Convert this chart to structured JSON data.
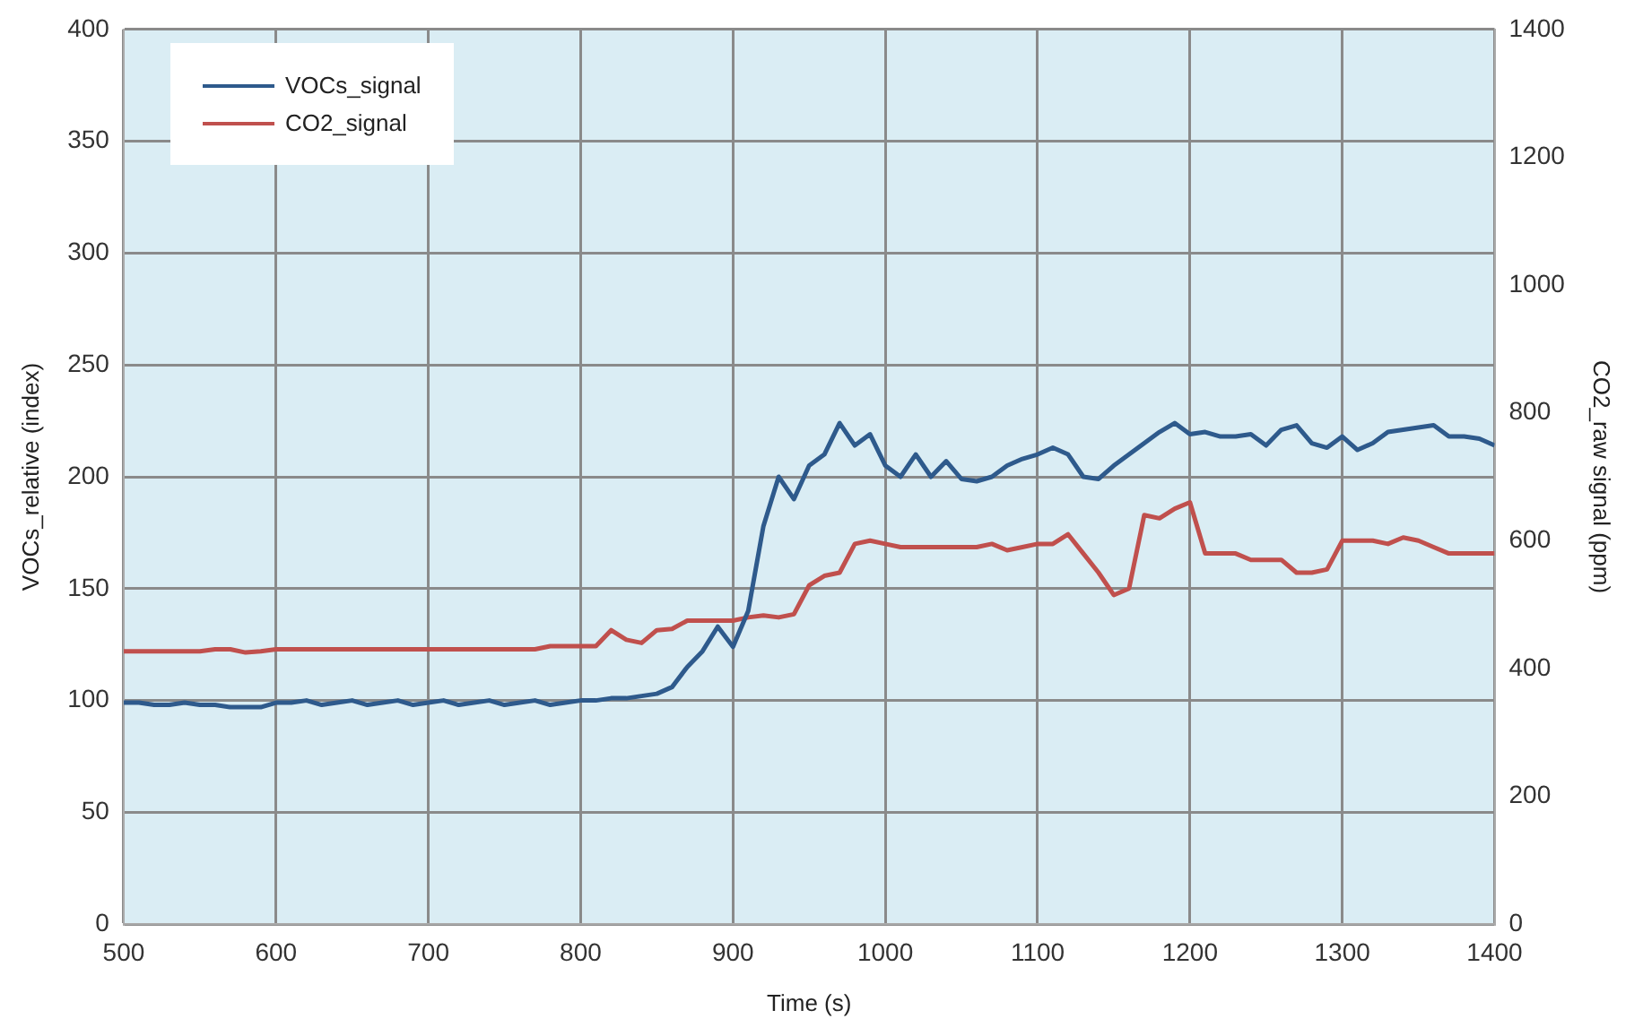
{
  "chart_data": {
    "type": "line",
    "xlabel": "Time (s)",
    "ylabel": "VOCs_relative (index)",
    "y2label": "CO2_raw signal (ppm)",
    "x": [
      500,
      510,
      520,
      530,
      540,
      550,
      560,
      570,
      580,
      590,
      600,
      610,
      620,
      630,
      640,
      650,
      660,
      670,
      680,
      690,
      700,
      710,
      720,
      730,
      740,
      750,
      760,
      770,
      780,
      790,
      800,
      810,
      820,
      830,
      840,
      850,
      860,
      870,
      880,
      890,
      900,
      910,
      920,
      930,
      940,
      950,
      960,
      970,
      980,
      990,
      1000,
      1010,
      1020,
      1030,
      1040,
      1050,
      1060,
      1070,
      1080,
      1090,
      1100,
      1110,
      1120,
      1130,
      1140,
      1150,
      1160,
      1170,
      1180,
      1190,
      1200,
      1210,
      1220,
      1230,
      1240,
      1250,
      1260,
      1270,
      1280,
      1290,
      1300,
      1310,
      1320,
      1330,
      1340,
      1350,
      1360,
      1370,
      1380,
      1390,
      1400
    ],
    "series": [
      {
        "name": "VOCs_signal",
        "color": "#2e5a8c",
        "values": [
          99,
          99,
          98,
          98,
          99,
          98,
          98,
          97,
          97,
          97,
          99,
          99,
          100,
          98,
          99,
          100,
          98,
          99,
          100,
          98,
          99,
          100,
          98,
          99,
          100,
          98,
          99,
          100,
          98,
          99,
          100,
          100,
          101,
          101,
          102,
          103,
          106,
          115,
          122,
          133,
          124,
          140,
          178,
          200,
          190,
          205,
          210,
          224,
          214,
          219,
          205,
          200,
          210,
          200,
          207,
          199,
          198,
          200,
          205,
          208,
          210,
          213,
          210,
          200,
          199,
          205,
          210,
          215,
          220,
          224,
          219,
          220,
          218,
          218,
          219,
          214,
          221,
          223,
          215,
          213,
          218,
          212,
          215,
          220,
          221,
          222,
          223,
          218,
          218,
          217,
          214
        ]
      },
      {
        "name": "CO2_signal",
        "color": "#c0504d",
        "axis": "y2",
        "values": [
          427,
          427,
          427,
          427,
          427,
          427,
          430,
          430,
          425,
          427,
          430,
          430,
          430,
          430,
          430,
          430,
          430,
          430,
          430,
          430,
          430,
          430,
          430,
          430,
          430,
          430,
          430,
          430,
          435,
          435,
          435,
          435,
          460,
          445,
          440,
          460,
          462,
          475,
          475,
          475,
          475,
          480,
          483,
          480,
          485,
          530,
          545,
          550,
          595,
          600,
          595,
          590,
          590,
          590,
          590,
          590,
          590,
          595,
          585,
          590,
          595,
          595,
          610,
          580,
          550,
          515,
          525,
          640,
          635,
          650,
          660,
          580,
          580,
          580,
          570,
          570,
          570,
          550,
          550,
          555,
          600,
          600,
          600,
          595,
          605,
          600,
          590,
          580,
          580,
          580,
          580
        ]
      }
    ],
    "xlim": [
      500,
      1400
    ],
    "xticks": [
      500,
      600,
      700,
      800,
      900,
      1000,
      1100,
      1200,
      1300,
      1400
    ],
    "ylim": [
      0,
      400
    ],
    "yticks": [
      0,
      50,
      100,
      150,
      200,
      250,
      300,
      350,
      400
    ],
    "y2lim": [
      0,
      1400
    ],
    "y2ticks": [
      0,
      200,
      400,
      600,
      800,
      1000,
      1200,
      1400
    ],
    "grid": true,
    "legend": "top left",
    "marker": "none",
    "line_style": "solid"
  }
}
